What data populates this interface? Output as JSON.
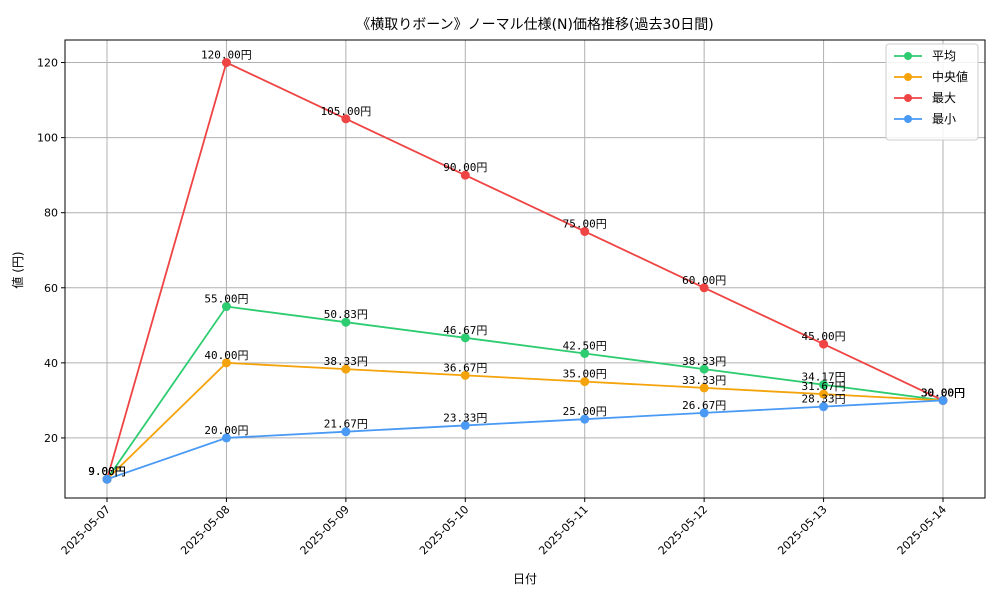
{
  "chart_data": {
    "type": "line",
    "title": "《横取りボーン》ノーマル仕様(N)価格推移(過去30日間)",
    "xlabel": "日付",
    "ylabel": "値 (円)",
    "categories": [
      "2025-05-07",
      "2025-05-08",
      "2025-05-09",
      "2025-05-10",
      "2025-05-11",
      "2025-05-12",
      "2025-05-13",
      "2025-05-14"
    ],
    "ylim": [
      4,
      126
    ],
    "yticks": [
      20,
      40,
      60,
      80,
      100,
      120
    ],
    "grid": true,
    "legend_position": "top-right",
    "value_suffix": "円",
    "series": [
      {
        "name": "平均",
        "color": "#2ecc71",
        "values": [
          9.0,
          55.0,
          50.83,
          46.67,
          42.5,
          38.33,
          34.17,
          30.0
        ]
      },
      {
        "name": "中央値",
        "color": "#f5a30a",
        "values": [
          9.0,
          40.0,
          38.33,
          36.67,
          35.0,
          33.33,
          31.67,
          30.0
        ]
      },
      {
        "name": "最大",
        "color": "#ef4444",
        "values": [
          9.0,
          120.0,
          105.0,
          90.0,
          75.0,
          60.0,
          45.0,
          30.0
        ]
      },
      {
        "name": "最小",
        "color": "#4a9af5",
        "values": [
          9.0,
          20.0,
          21.67,
          23.33,
          25.0,
          26.67,
          28.33,
          30.0
        ]
      }
    ]
  }
}
